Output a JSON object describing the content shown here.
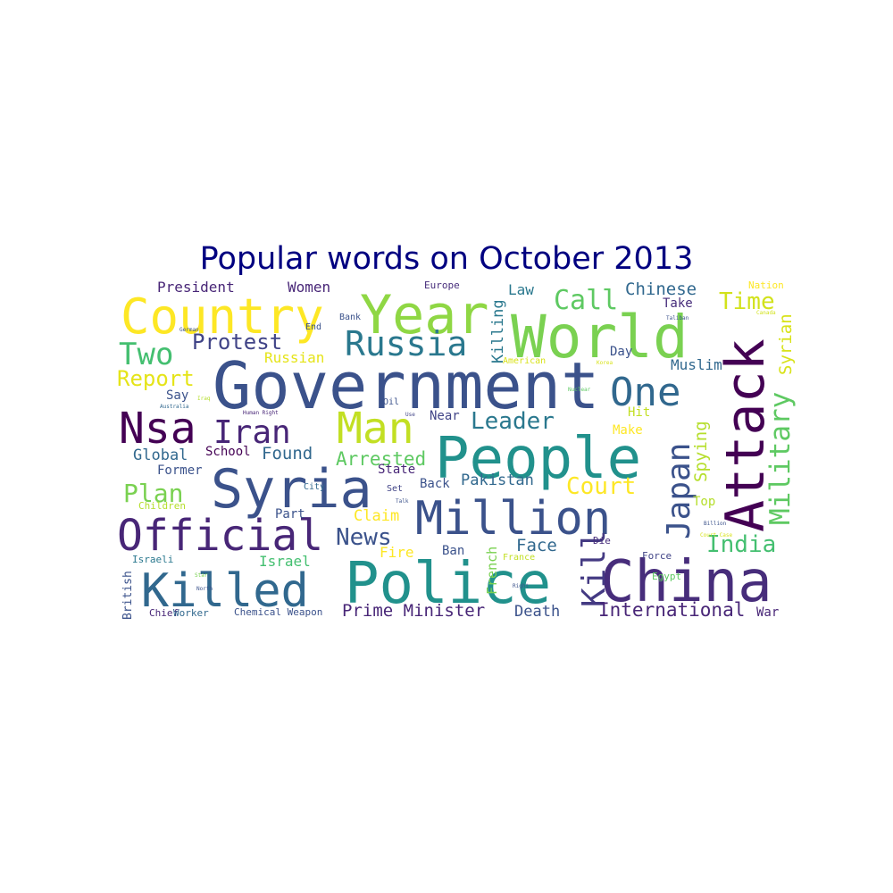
{
  "chart_data": {
    "type": "wordcloud",
    "title": "Popular words on October 2013",
    "colormap": "viridis",
    "background": "#ffffff",
    "words": [
      {
        "text": "Government",
        "weight": 100,
        "color": "#3b528b"
      },
      {
        "text": "World",
        "weight": 88,
        "color": "#7ad151"
      },
      {
        "text": "China",
        "weight": 85,
        "color": "#472d7b"
      },
      {
        "text": "Police",
        "weight": 85,
        "color": "#21918c"
      },
      {
        "text": "People",
        "weight": 85,
        "color": "#21918c"
      },
      {
        "text": "Year",
        "weight": 80,
        "color": "#8fd744"
      },
      {
        "text": "Syria",
        "weight": 78,
        "color": "#3b528b"
      },
      {
        "text": "Attack",
        "weight": 78,
        "color": "#440154"
      },
      {
        "text": "Country",
        "weight": 72,
        "color": "#fde725"
      },
      {
        "text": "Million",
        "weight": 70,
        "color": "#3b528b"
      },
      {
        "text": "Killed",
        "weight": 70,
        "color": "#31688e"
      },
      {
        "text": "Official",
        "weight": 64,
        "color": "#482677"
      },
      {
        "text": "Nsa",
        "weight": 64,
        "color": "#440154"
      },
      {
        "text": "Man",
        "weight": 64,
        "color": "#c2df23"
      },
      {
        "text": "One",
        "weight": 60,
        "color": "#31688e"
      },
      {
        "text": "Russia",
        "weight": 52,
        "color": "#2a788e"
      },
      {
        "text": "Iran",
        "weight": 50,
        "color": "#482677"
      },
      {
        "text": "Japan",
        "weight": 50,
        "color": "#3b528b"
      },
      {
        "text": "Kill",
        "weight": 50,
        "color": "#443a83"
      },
      {
        "text": "Two",
        "weight": 48,
        "color": "#44bf70"
      },
      {
        "text": "Military",
        "weight": 44,
        "color": "#5ec962"
      },
      {
        "text": "Call",
        "weight": 42,
        "color": "#5ec962"
      },
      {
        "text": "Plan",
        "weight": 40,
        "color": "#7ad151"
      },
      {
        "text": "Leader",
        "weight": 36,
        "color": "#2a788e"
      },
      {
        "text": "Court",
        "weight": 36,
        "color": "#fde725"
      },
      {
        "text": "News",
        "weight": 36,
        "color": "#3b528b"
      },
      {
        "text": "India",
        "weight": 36,
        "color": "#44bf70"
      },
      {
        "text": "Time",
        "weight": 36,
        "color": "#d2e21b"
      },
      {
        "text": "Report",
        "weight": 34,
        "color": "#e5e419"
      },
      {
        "text": "Protest",
        "weight": 33,
        "color": "#414487"
      },
      {
        "text": "Arrested",
        "weight": 30,
        "color": "#5ec962"
      },
      {
        "text": "International",
        "weight": 30,
        "color": "#482677"
      },
      {
        "text": "Syrian",
        "weight": 27,
        "color": "#d8e219"
      },
      {
        "text": "Spying",
        "weight": 27,
        "color": "#b5de2b"
      },
      {
        "text": "Chinese",
        "weight": 27,
        "color": "#31688e"
      },
      {
        "text": "Prime Minister",
        "weight": 27,
        "color": "#482677"
      },
      {
        "text": "Found",
        "weight": 27,
        "color": "#31688e"
      },
      {
        "text": "Face",
        "weight": 27,
        "color": "#31688e"
      },
      {
        "text": "Killing",
        "weight": 24,
        "color": "#2a788e"
      },
      {
        "text": "Global",
        "weight": 24,
        "color": "#31688e"
      },
      {
        "text": "Pakistan",
        "weight": 24,
        "color": "#31688e"
      },
      {
        "text": "Death",
        "weight": 24,
        "color": "#3b528b"
      },
      {
        "text": "Claim",
        "weight": 24,
        "color": "#fde725"
      },
      {
        "text": "President",
        "weight": 22,
        "color": "#482677"
      },
      {
        "text": "Women",
        "weight": 22,
        "color": "#482677"
      },
      {
        "text": "Law",
        "weight": 22,
        "color": "#2a788e"
      },
      {
        "text": "Muslim",
        "weight": 22,
        "color": "#31688e"
      },
      {
        "text": "Israel",
        "weight": 22,
        "color": "#44bf70"
      },
      {
        "text": "Russian",
        "weight": 22,
        "color": "#e5e419"
      },
      {
        "text": "Fire",
        "weight": 22,
        "color": "#fde725"
      },
      {
        "text": "School",
        "weight": 20,
        "color": "#440154"
      },
      {
        "text": "Former",
        "weight": 20,
        "color": "#3b528b"
      },
      {
        "text": "Near",
        "weight": 20,
        "color": "#414487"
      },
      {
        "text": "State",
        "weight": 20,
        "color": "#482677"
      },
      {
        "text": "Back",
        "weight": 20,
        "color": "#3b528b"
      },
      {
        "text": "Say",
        "weight": 20,
        "color": "#3b528b"
      },
      {
        "text": "Hit",
        "weight": 20,
        "color": "#c2df23"
      },
      {
        "text": "Make",
        "weight": 20,
        "color": "#fde725"
      },
      {
        "text": "Day",
        "weight": 20,
        "color": "#3b528b"
      },
      {
        "text": "Take",
        "weight": 20,
        "color": "#472d7b"
      },
      {
        "text": "Top",
        "weight": 20,
        "color": "#b5de2b"
      },
      {
        "text": "War",
        "weight": 20,
        "color": "#482677"
      },
      {
        "text": "French",
        "weight": 20,
        "color": "#7ad151"
      },
      {
        "text": "Ban",
        "weight": 18,
        "color": "#3b528b"
      },
      {
        "text": "Part",
        "weight": 18,
        "color": "#3b528b"
      },
      {
        "text": "British",
        "weight": 18,
        "color": "#3b528b"
      },
      {
        "text": "Die",
        "weight": 14,
        "color": "#472d7b"
      },
      {
        "text": "Force",
        "weight": 14,
        "color": "#414487"
      },
      {
        "text": "Europe",
        "weight": 14,
        "color": "#472d7b"
      },
      {
        "text": "Nation",
        "weight": 14,
        "color": "#fde725"
      },
      {
        "text": "Chemical Weapon",
        "weight": 14,
        "color": "#3b528b"
      },
      {
        "text": "Chief",
        "weight": 14,
        "color": "#482677"
      },
      {
        "text": "Worker",
        "weight": 14,
        "color": "#31688e"
      },
      {
        "text": "Israeli",
        "weight": 14,
        "color": "#2a788e"
      },
      {
        "text": "Children",
        "weight": 14,
        "color": "#b5de2b"
      },
      {
        "text": "Egypt",
        "weight": 14,
        "color": "#5ec962"
      },
      {
        "text": "France",
        "weight": 14,
        "color": "#c2df23"
      },
      {
        "text": "American",
        "weight": 14,
        "color": "#d8e219"
      },
      {
        "text": "City",
        "weight": 12,
        "color": "#31688e"
      },
      {
        "text": "Set",
        "weight": 12,
        "color": "#414487"
      },
      {
        "text": "End",
        "weight": 12,
        "color": "#3b528b"
      },
      {
        "text": "Bank",
        "weight": 12,
        "color": "#3b528b"
      },
      {
        "text": "Oil",
        "weight": 12,
        "color": "#3b528b"
      },
      {
        "text": "Canada",
        "weight": 8,
        "color": "#d2e21b"
      },
      {
        "text": "Human Right",
        "weight": 8,
        "color": "#482677"
      },
      {
        "text": "Australia",
        "weight": 8,
        "color": "#31688e"
      },
      {
        "text": "German",
        "weight": 8,
        "color": "#3b528b"
      },
      {
        "text": "North",
        "weight": 8,
        "color": "#3b528b"
      },
      {
        "text": "Right",
        "weight": 8,
        "color": "#3b528b"
      },
      {
        "text": "Nuclear",
        "weight": 8,
        "color": "#5ec962"
      },
      {
        "text": "Talk",
        "weight": 8,
        "color": "#3b528b"
      },
      {
        "text": "Billion",
        "weight": 8,
        "color": "#3b528b"
      },
      {
        "text": "Iraq",
        "weight": 8,
        "color": "#b5de2b"
      },
      {
        "text": "Korea",
        "weight": 8,
        "color": "#d8e219"
      },
      {
        "text": "Taliban",
        "weight": 8,
        "color": "#3b528b"
      },
      {
        "text": "Court Case",
        "weight": 8,
        "color": "#d8e219"
      },
      {
        "text": "Star",
        "weight": 8,
        "color": "#7ad151"
      },
      {
        "text": "Use",
        "weight": 8,
        "color": "#414487"
      }
    ]
  }
}
